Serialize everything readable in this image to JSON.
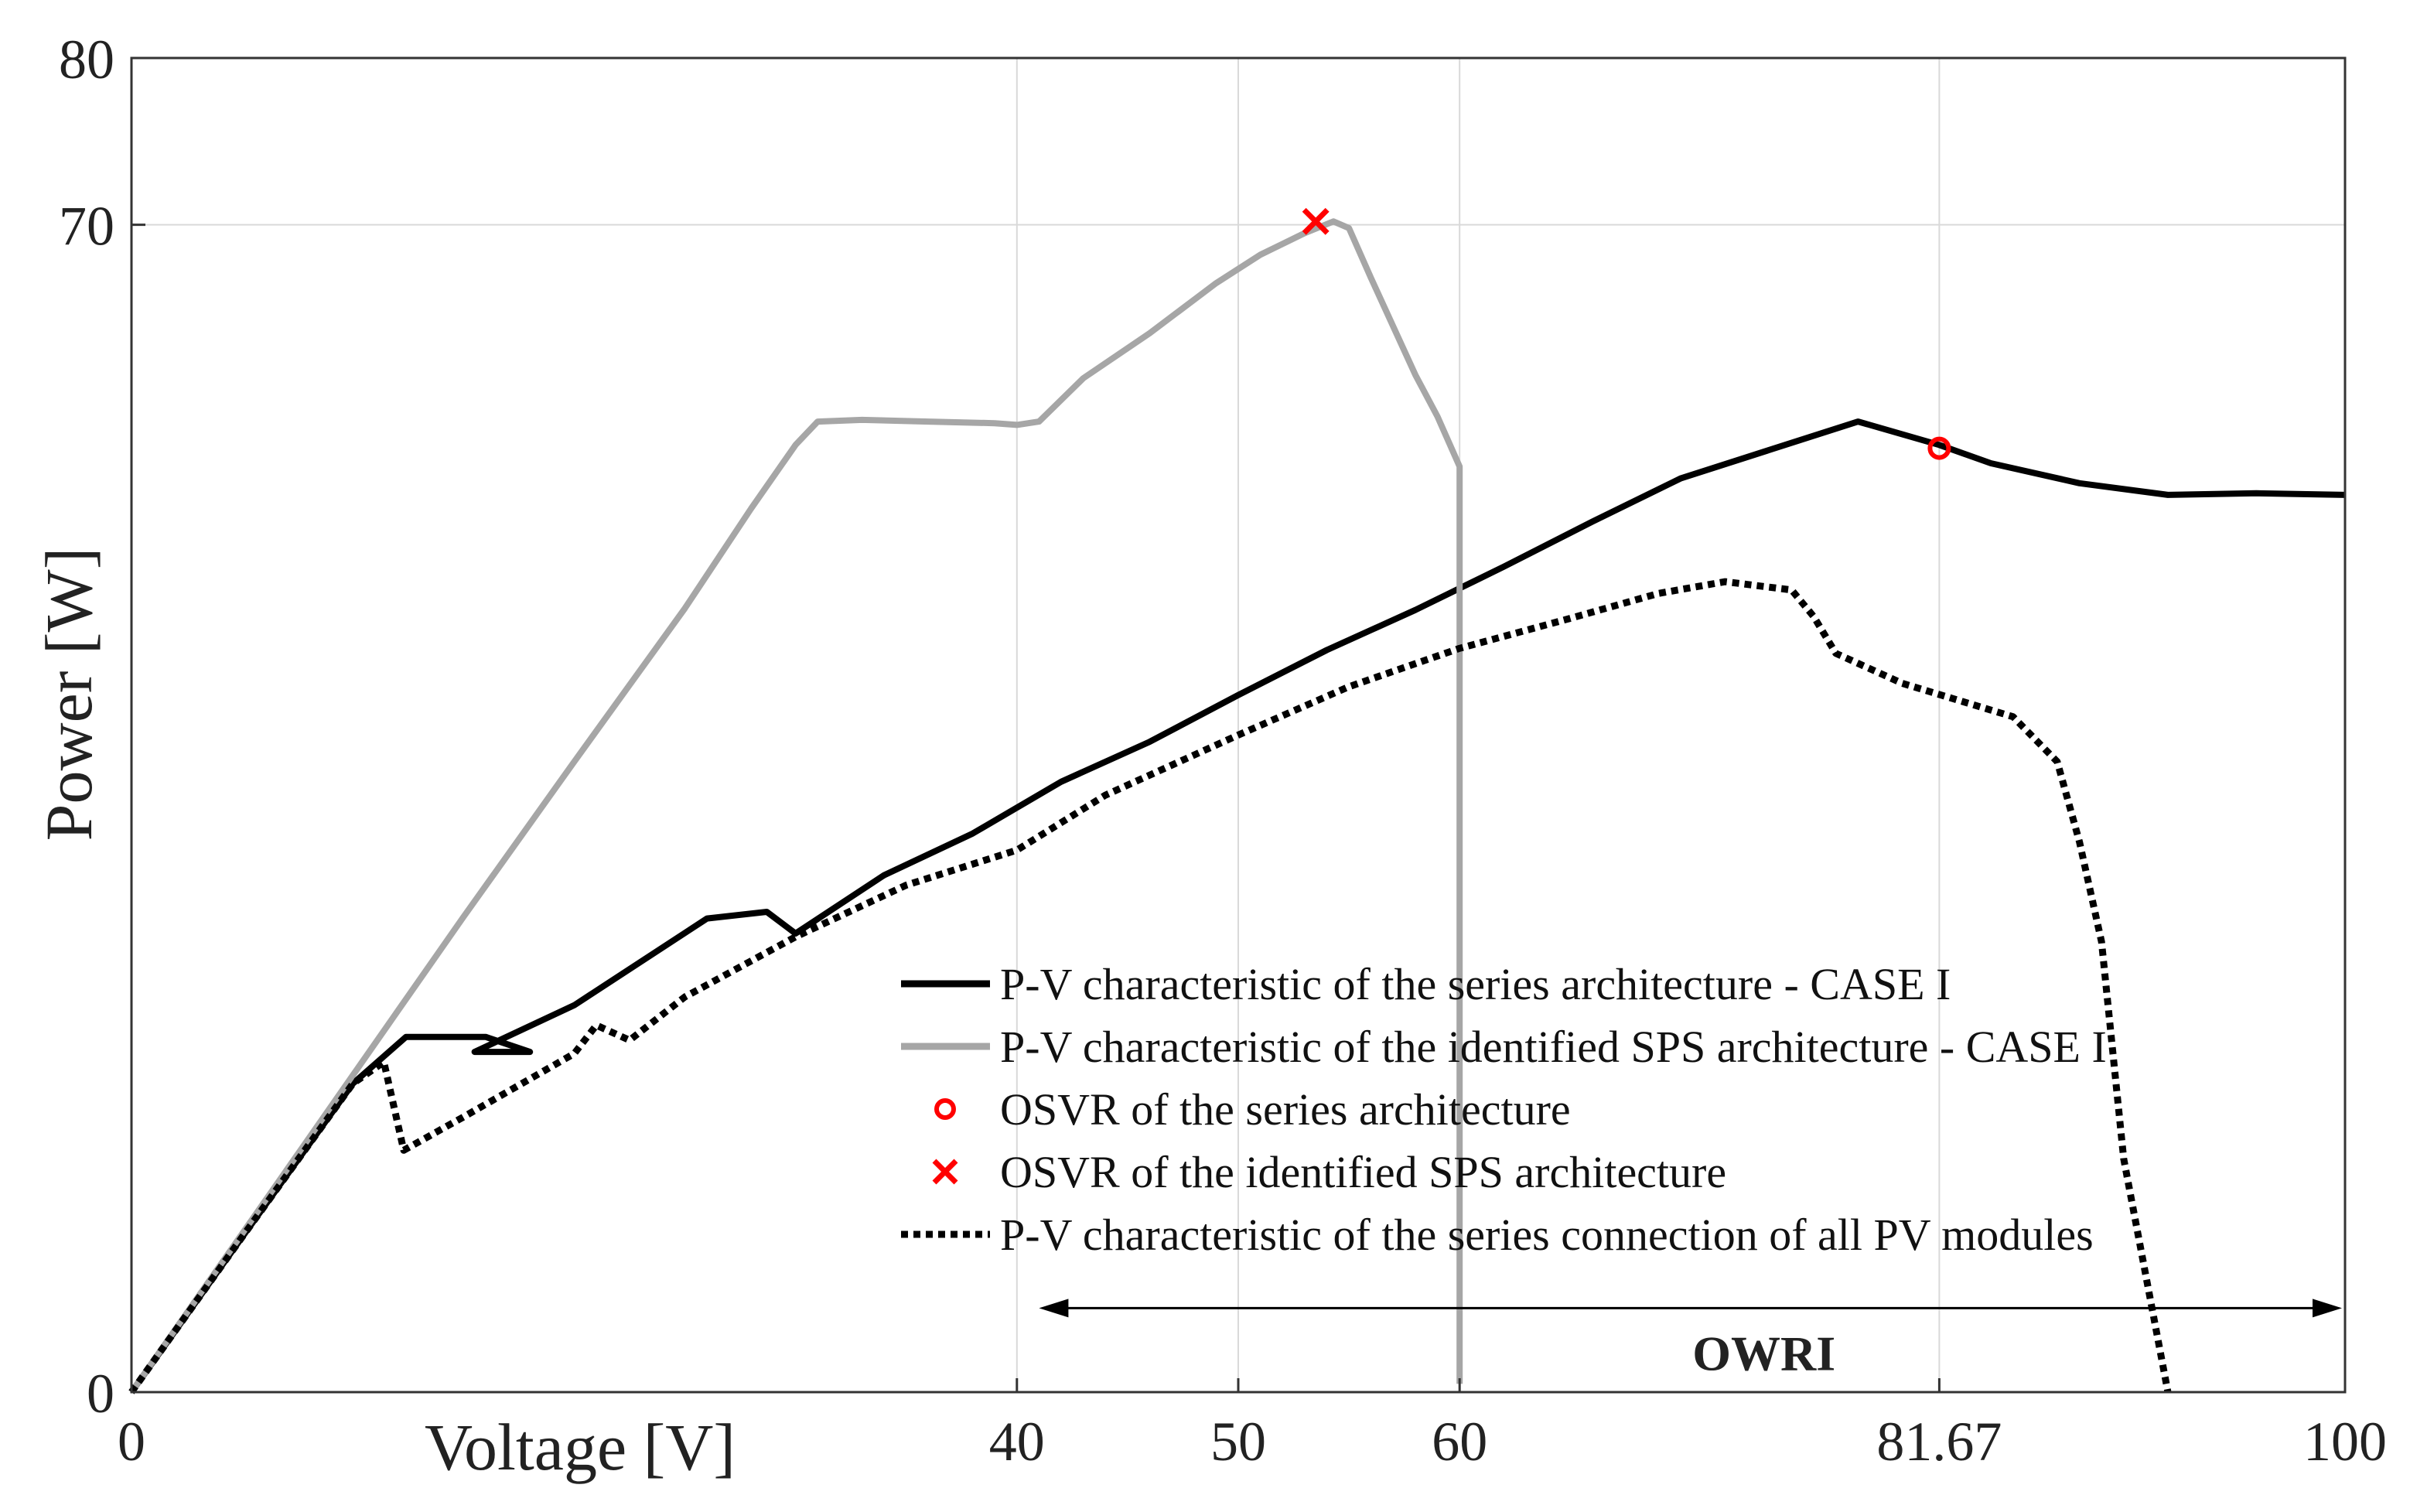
{
  "chart_data": {
    "type": "line",
    "xlabel": "Voltage [V]",
    "ylabel": "Power [W]",
    "x_ticks": [
      {
        "value": 0,
        "label": "0"
      },
      {
        "value": 40,
        "label": "40"
      },
      {
        "value": 50,
        "label": "50"
      },
      {
        "value": 60,
        "label": "60"
      },
      {
        "value": 81.67,
        "label": "81.67"
      },
      {
        "value": 100,
        "label": "100"
      }
    ],
    "y_ticks": [
      {
        "value": 0,
        "label": "0"
      },
      {
        "value": 70,
        "label": "70"
      },
      {
        "value": 80,
        "label": "80"
      }
    ],
    "xlim": [
      0,
      100
    ],
    "ylim": [
      0,
      80
    ],
    "grid": "major lines at labelled ticks",
    "legend_position": "lower-right inside",
    "series": [
      {
        "name": "P-V characteristic of the series architecture - CASE I",
        "style": "solid",
        "color": "#000000",
        "x": [
          0,
          5,
          10,
          12.4,
          16,
          18,
          15.5,
          20,
          26,
          28.7,
          30,
          34,
          38,
          42,
          46,
          50,
          54,
          58,
          62,
          66,
          70,
          74,
          78,
          81.67,
          84,
          88,
          92,
          96,
          100
        ],
        "y": [
          0,
          9.3,
          18.5,
          21.3,
          21.3,
          20.4,
          20.4,
          23.2,
          28.4,
          28.8,
          27.5,
          31,
          33.5,
          36.6,
          39,
          41.8,
          44.5,
          46.9,
          49.5,
          52.2,
          54.8,
          56.5,
          58.2,
          56.8,
          55.7,
          54.5,
          53.8,
          53.9,
          53.8
        ]
      },
      {
        "name": "P-V characteristic of the identified SPS architecture - CASE I",
        "style": "solid",
        "color": "#a6a6a6",
        "x": [
          0,
          5,
          10,
          15,
          20,
          25,
          28,
          30,
          31,
          33,
          36,
          39,
          40,
          41,
          43,
          46,
          49,
          51,
          53,
          54.3,
          55,
          56,
          58,
          59,
          60,
          60,
          60
        ],
        "y": [
          0,
          9.5,
          19,
          28.5,
          37.8,
          47,
          53,
          56.8,
          58.2,
          58.3,
          58.2,
          58.1,
          58.0,
          58.2,
          60.8,
          63.5,
          66.5,
          68.2,
          69.5,
          70.2,
          69.8,
          66.8,
          61,
          58.5,
          55.5,
          30,
          0.5
        ]
      },
      {
        "name": "P-V characteristic of the series connection of all PV modules",
        "style": "dotted",
        "color": "#000000",
        "x": [
          0,
          5,
          10,
          11.4,
          12.3,
          15,
          20,
          21,
          22.5,
          25,
          30,
          35,
          40,
          44,
          50,
          55,
          60,
          65,
          69,
          72,
          75,
          76,
          77,
          80,
          85,
          87,
          88,
          89,
          90,
          91,
          92
        ],
        "y": [
          0,
          9.3,
          18.5,
          19.8,
          14.5,
          16.5,
          20.3,
          22,
          21.1,
          23.7,
          27.3,
          30.4,
          32.5,
          35.8,
          39.4,
          42.3,
          44.6,
          46.4,
          47.9,
          48.6,
          48.1,
          46.5,
          44.3,
          42.5,
          40.5,
          37.8,
          33,
          27,
          14,
          7,
          0
        ]
      }
    ],
    "markers": [
      {
        "name": "OSVR of the series architecture",
        "shape": "circle",
        "color": "#ff0000",
        "x": 81.67,
        "y": 56.6
      },
      {
        "name": "OSVR of the identified SPS architecture",
        "shape": "x",
        "color": "#ff0000",
        "x": 53.5,
        "y": 70.2
      }
    ],
    "annotations": [
      {
        "text": "OWRI",
        "type": "double-arrow",
        "x_range": [
          41,
          100
        ],
        "y": 5.5
      }
    ],
    "legend": [
      "P-V characteristic of the series architecture - CASE I",
      "P-V characteristic of the identified SPS architecture - CASE I",
      "OSVR of the series architecture",
      "OSVR of the identified SPS architecture",
      "P-V characteristic of the series connection of all PV modules"
    ]
  }
}
